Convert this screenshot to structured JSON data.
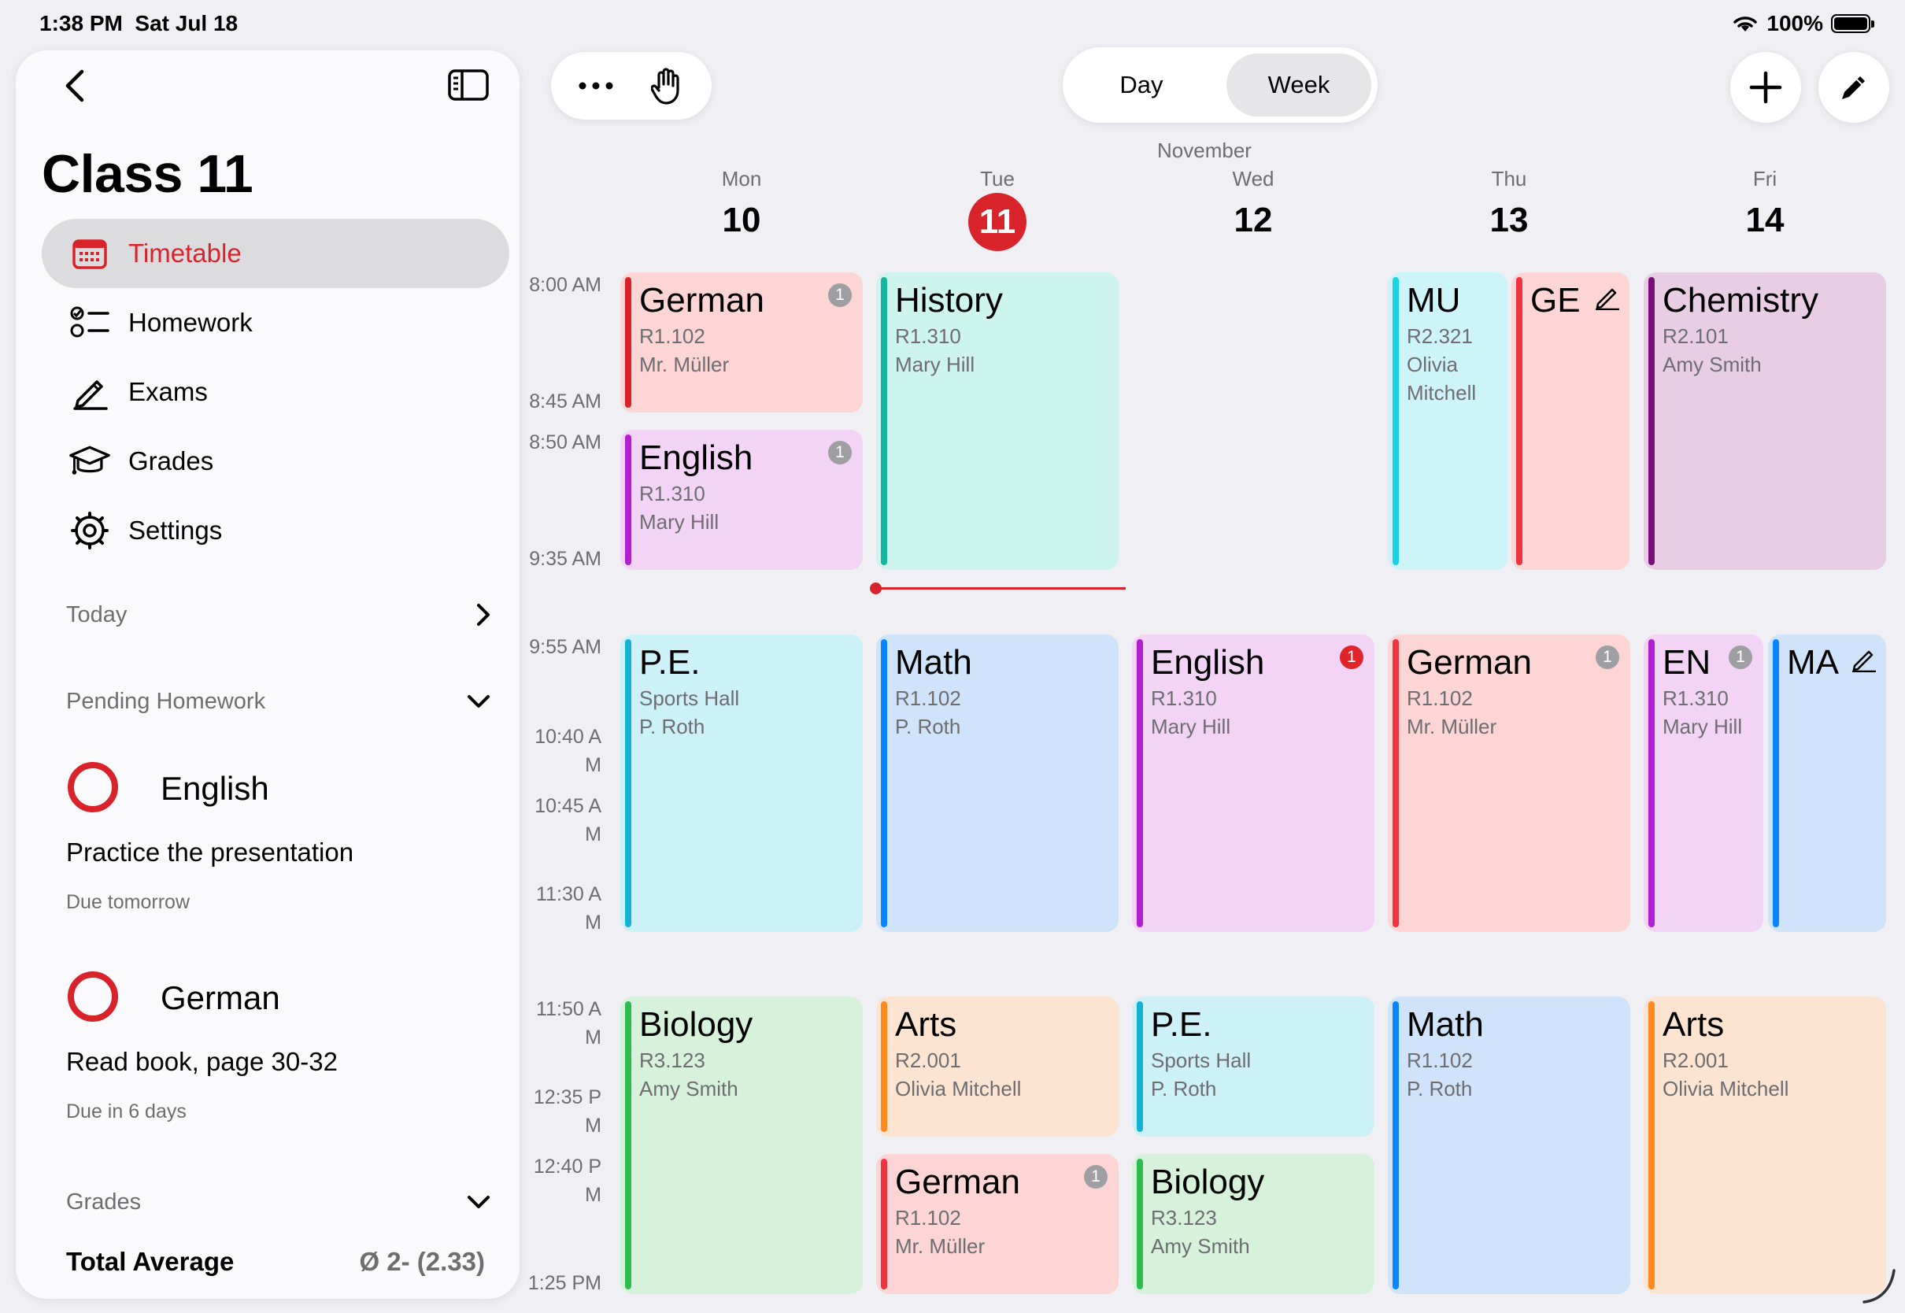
{
  "status_bar": {
    "time": "1:38 PM",
    "date": "Sat Jul 18",
    "battery": "100%"
  },
  "sidebar": {
    "title": "Class 11",
    "nav": [
      {
        "label": "Timetable",
        "icon": "calendar-icon",
        "active": true
      },
      {
        "label": "Homework",
        "icon": "checklist-icon",
        "active": false
      },
      {
        "label": "Exams",
        "icon": "pencil-icon",
        "active": false
      },
      {
        "label": "Grades",
        "icon": "graduation-cap-icon",
        "active": false
      },
      {
        "label": "Settings",
        "icon": "gear-icon",
        "active": false
      }
    ],
    "today_label": "Today",
    "pending_label": "Pending Homework",
    "homework": [
      {
        "subject": "English",
        "task": "Practice the presentation",
        "due": "Due tomorrow"
      },
      {
        "subject": "German",
        "task": "Read book, page 30-32",
        "due": "Due in 6 days"
      }
    ],
    "grades_label": "Grades",
    "total_label": "Total Average",
    "total_value": "Ø 2- (2.33)"
  },
  "toolbar": {
    "day_label": "Day",
    "week_label": "Week",
    "selected": "Week"
  },
  "calendar": {
    "month": "November",
    "days": [
      {
        "name": "Mon",
        "num": "10",
        "today": false
      },
      {
        "name": "Tue",
        "num": "11",
        "today": true
      },
      {
        "name": "Wed",
        "num": "12",
        "today": false
      },
      {
        "name": "Thu",
        "num": "13",
        "today": false
      },
      {
        "name": "Fri",
        "num": "14",
        "today": false
      }
    ],
    "times": [
      "8:00 AM",
      "8:45 AM",
      "8:50 AM",
      "9:35 AM",
      "9:55 AM",
      "10:40 A\nM",
      "10:45 A\nM",
      "11:30 A\nM",
      "11:50 A\nM",
      "12:35 P\nM",
      "12:40 P\nM",
      "1:25 PM"
    ],
    "events": [
      {
        "subject": "German",
        "room": "R1.102",
        "teacher": "Mr. Müller",
        "badge": "1",
        "color": "#d8232a"
      },
      {
        "subject": "English",
        "room": "R1.310",
        "teacher": "Mary Hill",
        "badge": "1",
        "color": "#b11fcf"
      },
      {
        "subject": "History",
        "room": "R1.310",
        "teacher": "Mary Hill",
        "color": "#12b5a0"
      },
      {
        "subject": "MU",
        "room": "R2.321",
        "teacher": "Olivia Mitchell",
        "color": "#1ad2e6"
      },
      {
        "subject": "GE",
        "edit": true,
        "color": "#ef3340"
      },
      {
        "subject": "Chemistry",
        "room": "R2.101",
        "teacher": "Amy Smith",
        "color": "#7a0f7a"
      },
      {
        "subject": "P.E.",
        "room": "Sports Hall",
        "teacher": "P. Roth",
        "color": "#16b2d6"
      },
      {
        "subject": "Math",
        "room": "R1.102",
        "teacher": "P. Roth",
        "color": "#0a84ff"
      },
      {
        "subject": "English",
        "room": "R1.310",
        "teacher": "Mary Hill",
        "badge": "1",
        "badge_red": true,
        "color": "#b11fcf"
      },
      {
        "subject": "German",
        "room": "R1.102",
        "teacher": "Mr. Müller",
        "badge": "1",
        "color": "#ef3340"
      },
      {
        "subject": "EN",
        "room": "R1.310",
        "teacher": "Mary Hill",
        "badge": "1",
        "color": "#b11fcf"
      },
      {
        "subject": "MA",
        "edit": true,
        "color": "#0a84ff"
      },
      {
        "subject": "Biology",
        "room": "R3.123",
        "teacher": "Amy Smith",
        "color": "#2ebc4f"
      },
      {
        "subject": "Arts",
        "room": "R2.001",
        "teacher": "Olivia Mitchell",
        "color": "#ff8a1f"
      },
      {
        "subject": "German",
        "room": "R1.102",
        "teacher": "Mr. Müller",
        "badge": "1",
        "color": "#ef3340"
      },
      {
        "subject": "P.E.",
        "room": "Sports Hall",
        "teacher": "P. Roth",
        "color": "#16b2d6"
      },
      {
        "subject": "Biology",
        "room": "R3.123",
        "teacher": "Amy Smith",
        "color": "#2ebc4f"
      },
      {
        "subject": "Math",
        "room": "R1.102",
        "teacher": "P. Roth",
        "color": "#0a84ff"
      },
      {
        "subject": "Arts",
        "room": "R2.001",
        "teacher": "Olivia Mitchell",
        "color": "#ff8a1f"
      }
    ]
  }
}
